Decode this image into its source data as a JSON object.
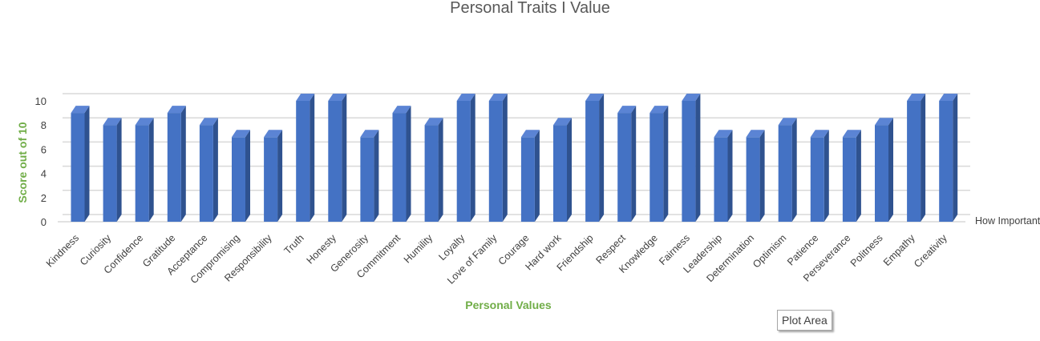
{
  "chart_data": {
    "type": "bar",
    "title": "Personal Traits I Value",
    "xlabel": "Personal Values",
    "ylabel": "Score out of 10",
    "ylim": [
      0,
      10
    ],
    "yticks": [
      0,
      2,
      4,
      6,
      8,
      10
    ],
    "grid": true,
    "categories": [
      "Kindness",
      "Curiosity",
      "Confidence",
      "Gratitude",
      "Acceptance",
      "Compromising",
      "Responsibility",
      "Truth",
      "Honesty",
      "Generosity",
      "Commitment",
      "Humility",
      "Loyalty",
      "Love of Family",
      "Courage",
      "Hard work",
      "Friendship",
      "Respect",
      "Knowledge",
      "Fairness",
      "Leadership",
      "Determination",
      "Optimism",
      "Patience",
      "Perseverance",
      "Politness",
      "Empathy",
      "Creativity"
    ],
    "series": [
      {
        "name": "How Important",
        "values": [
          9,
          8,
          8,
          9,
          8,
          7,
          7,
          10,
          10,
          7,
          9,
          8,
          10,
          10,
          7,
          8,
          10,
          9,
          9,
          10,
          7,
          7,
          8,
          7,
          7,
          8,
          10,
          10
        ]
      }
    ],
    "colors": {
      "bar_front": "#4472c4",
      "bar_side": "#2f528f",
      "bar_top": "#5b84d4",
      "grid": "#d9d9d9",
      "axis_title": "#70ad47"
    }
  },
  "tooltip": {
    "label": "Plot Area"
  }
}
